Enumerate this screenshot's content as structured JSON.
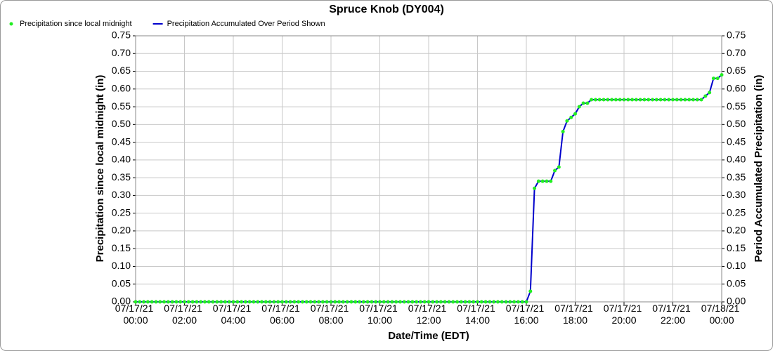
{
  "chart_data": {
    "type": "line",
    "title": "Spruce Knob (DY004)",
    "xlabel": "Date/Time (EDT)",
    "ylabel": "Precipitation since local midnight (in)",
    "y2label": "Period Accumulated Precipitation (in)",
    "x": [
      "07/17/21 00:00",
      "07/17/21 00:10",
      "07/17/21 00:20",
      "07/17/21 00:30",
      "07/17/21 00:40",
      "07/17/21 00:50",
      "07/17/21 01:00",
      "07/17/21 01:10",
      "07/17/21 01:20",
      "07/17/21 01:30",
      "07/17/21 01:40",
      "07/17/21 01:50",
      "07/17/21 02:00",
      "07/17/21 02:10",
      "07/17/21 02:20",
      "07/17/21 02:30",
      "07/17/21 02:40",
      "07/17/21 02:50",
      "07/17/21 03:00",
      "07/17/21 03:10",
      "07/17/21 03:20",
      "07/17/21 03:30",
      "07/17/21 03:40",
      "07/17/21 03:50",
      "07/17/21 04:00",
      "07/17/21 04:10",
      "07/17/21 04:20",
      "07/17/21 04:30",
      "07/17/21 04:40",
      "07/17/21 04:50",
      "07/17/21 05:00",
      "07/17/21 05:10",
      "07/17/21 05:20",
      "07/17/21 05:30",
      "07/17/21 05:40",
      "07/17/21 05:50",
      "07/17/21 06:00",
      "07/17/21 06:10",
      "07/17/21 06:20",
      "07/17/21 06:30",
      "07/17/21 06:40",
      "07/17/21 06:50",
      "07/17/21 07:00",
      "07/17/21 07:10",
      "07/17/21 07:20",
      "07/17/21 07:30",
      "07/17/21 07:40",
      "07/17/21 07:50",
      "07/17/21 08:00",
      "07/17/21 08:10",
      "07/17/21 08:20",
      "07/17/21 08:30",
      "07/17/21 08:40",
      "07/17/21 08:50",
      "07/17/21 09:00",
      "07/17/21 09:10",
      "07/17/21 09:20",
      "07/17/21 09:30",
      "07/17/21 09:40",
      "07/17/21 09:50",
      "07/17/21 10:00",
      "07/17/21 10:10",
      "07/17/21 10:20",
      "07/17/21 10:30",
      "07/17/21 10:40",
      "07/17/21 10:50",
      "07/17/21 11:00",
      "07/17/21 11:10",
      "07/17/21 11:20",
      "07/17/21 11:30",
      "07/17/21 11:40",
      "07/17/21 11:50",
      "07/17/21 12:00",
      "07/17/21 12:10",
      "07/17/21 12:20",
      "07/17/21 12:30",
      "07/17/21 12:40",
      "07/17/21 12:50",
      "07/17/21 13:00",
      "07/17/21 13:10",
      "07/17/21 13:20",
      "07/17/21 13:30",
      "07/17/21 13:40",
      "07/17/21 13:50",
      "07/17/21 14:00",
      "07/17/21 14:10",
      "07/17/21 14:20",
      "07/17/21 14:30",
      "07/17/21 14:40",
      "07/17/21 14:50",
      "07/17/21 15:00",
      "07/17/21 15:10",
      "07/17/21 15:20",
      "07/17/21 15:30",
      "07/17/21 15:40",
      "07/17/21 15:50",
      "07/17/21 16:00",
      "07/17/21 16:10",
      "07/17/21 16:20",
      "07/17/21 16:30",
      "07/17/21 16:40",
      "07/17/21 16:50",
      "07/17/21 17:00",
      "07/17/21 17:10",
      "07/17/21 17:20",
      "07/17/21 17:30",
      "07/17/21 17:40",
      "07/17/21 17:50",
      "07/17/21 18:00",
      "07/17/21 18:10",
      "07/17/21 18:20",
      "07/17/21 18:30",
      "07/17/21 18:40",
      "07/17/21 18:50",
      "07/17/21 19:00",
      "07/17/21 19:10",
      "07/17/21 19:20",
      "07/17/21 19:30",
      "07/17/21 19:40",
      "07/17/21 19:50",
      "07/17/21 20:00",
      "07/17/21 20:10",
      "07/17/21 20:20",
      "07/17/21 20:30",
      "07/17/21 20:40",
      "07/17/21 20:50",
      "07/17/21 21:00",
      "07/17/21 21:10",
      "07/17/21 21:20",
      "07/17/21 21:30",
      "07/17/21 21:40",
      "07/17/21 21:50",
      "07/17/21 22:00",
      "07/17/21 22:10",
      "07/17/21 22:20",
      "07/17/21 22:30",
      "07/17/21 22:40",
      "07/17/21 22:50",
      "07/17/21 23:00",
      "07/17/21 23:10",
      "07/17/21 23:20",
      "07/17/21 23:30",
      "07/17/21 23:40",
      "07/17/21 23:50",
      "07/18/21 00:00"
    ],
    "series": [
      {
        "name": "Precipitation since local midnight",
        "type": "scatter",
        "color": "#22ee22",
        "values": [
          0,
          0,
          0,
          0,
          0,
          0,
          0,
          0,
          0,
          0,
          0,
          0,
          0,
          0,
          0,
          0,
          0,
          0,
          0,
          0,
          0,
          0,
          0,
          0,
          0,
          0,
          0,
          0,
          0,
          0,
          0,
          0,
          0,
          0,
          0,
          0,
          0,
          0,
          0,
          0,
          0,
          0,
          0,
          0,
          0,
          0,
          0,
          0,
          0,
          0,
          0,
          0,
          0,
          0,
          0,
          0,
          0,
          0,
          0,
          0,
          0,
          0,
          0,
          0,
          0,
          0,
          0,
          0,
          0,
          0,
          0,
          0,
          0,
          0,
          0,
          0,
          0,
          0,
          0,
          0,
          0,
          0,
          0,
          0,
          0,
          0,
          0,
          0,
          0,
          0,
          0,
          0,
          0,
          0,
          0,
          0,
          0,
          0.03,
          0.32,
          0.34,
          0.34,
          0.34,
          0.34,
          0.37,
          0.38,
          0.48,
          0.51,
          0.52,
          0.53,
          0.55,
          0.56,
          0.56,
          0.57,
          0.57,
          0.57,
          0.57,
          0.57,
          0.57,
          0.57,
          0.57,
          0.57,
          0.57,
          0.57,
          0.57,
          0.57,
          0.57,
          0.57,
          0.57,
          0.57,
          0.57,
          0.57,
          0.57,
          0.57,
          0.57,
          0.57,
          0.57,
          0.57,
          0.57,
          0.57,
          0.57,
          0.58,
          0.59,
          0.63,
          0.63,
          0.64
        ]
      },
      {
        "name": "Precipitation Accumulated Over Period Shown",
        "type": "line",
        "color": "#0000cc",
        "axis": "y2",
        "values": [
          0,
          0,
          0,
          0,
          0,
          0,
          0,
          0,
          0,
          0,
          0,
          0,
          0,
          0,
          0,
          0,
          0,
          0,
          0,
          0,
          0,
          0,
          0,
          0,
          0,
          0,
          0,
          0,
          0,
          0,
          0,
          0,
          0,
          0,
          0,
          0,
          0,
          0,
          0,
          0,
          0,
          0,
          0,
          0,
          0,
          0,
          0,
          0,
          0,
          0,
          0,
          0,
          0,
          0,
          0,
          0,
          0,
          0,
          0,
          0,
          0,
          0,
          0,
          0,
          0,
          0,
          0,
          0,
          0,
          0,
          0,
          0,
          0,
          0,
          0,
          0,
          0,
          0,
          0,
          0,
          0,
          0,
          0,
          0,
          0,
          0,
          0,
          0,
          0,
          0,
          0,
          0,
          0,
          0,
          0,
          0,
          0,
          0.03,
          0.32,
          0.34,
          0.34,
          0.34,
          0.34,
          0.37,
          0.38,
          0.48,
          0.51,
          0.52,
          0.53,
          0.55,
          0.56,
          0.56,
          0.57,
          0.57,
          0.57,
          0.57,
          0.57,
          0.57,
          0.57,
          0.57,
          0.57,
          0.57,
          0.57,
          0.57,
          0.57,
          0.57,
          0.57,
          0.57,
          0.57,
          0.57,
          0.57,
          0.57,
          0.57,
          0.57,
          0.57,
          0.57,
          0.57,
          0.57,
          0.57,
          0.57,
          0.58,
          0.59,
          0.63,
          0.63,
          0.64
        ]
      }
    ],
    "xlim": [
      "07/17/21 00:00",
      "07/18/21 00:00"
    ],
    "xticks": [
      "07/17/21 00:00",
      "07/17/21 02:00",
      "07/17/21 04:00",
      "07/17/21 06:00",
      "07/17/21 08:00",
      "07/17/21 10:00",
      "07/17/21 12:00",
      "07/17/21 14:00",
      "07/17/21 16:00",
      "07/17/21 18:00",
      "07/17/21 20:00",
      "07/17/21 22:00",
      "07/18/21 00:00"
    ],
    "ylim": [
      0,
      0.75
    ],
    "yticks": [
      {
        "value": 0,
        "label": "0.00"
      },
      {
        "value": 0.05,
        "label": "0.05"
      },
      {
        "value": 0.1,
        "label": "0.10"
      },
      {
        "value": 0.15,
        "label": "0.15"
      },
      {
        "value": 0.2,
        "label": "0.20"
      },
      {
        "value": 0.25,
        "label": "0.25"
      },
      {
        "value": 0.3,
        "label": "0.30"
      },
      {
        "value": 0.35,
        "label": "0.35"
      },
      {
        "value": 0.4,
        "label": "0.40"
      },
      {
        "value": 0.45,
        "label": "0.45"
      },
      {
        "value": 0.5,
        "label": "0.50"
      },
      {
        "value": 0.55,
        "label": "0.55"
      },
      {
        "value": 0.6,
        "label": "0.60"
      },
      {
        "value": 0.65,
        "label": "0.65"
      },
      {
        "value": 0.7,
        "label": "0.70"
      },
      {
        "value": 0.75,
        "label": "0.75"
      }
    ],
    "y2lim": [
      0,
      0.75
    ],
    "y2ticks": [
      {
        "value": 0,
        "label": "0.00"
      },
      {
        "value": 0.05,
        "label": "0.05"
      },
      {
        "value": 0.1,
        "label": "0.10"
      },
      {
        "value": 0.15,
        "label": "0.15"
      },
      {
        "value": 0.2,
        "label": "0.20"
      },
      {
        "value": 0.25,
        "label": "0.25"
      },
      {
        "value": 0.3,
        "label": "0.30"
      },
      {
        "value": 0.35,
        "label": "0.35"
      },
      {
        "value": 0.4,
        "label": "0.40"
      },
      {
        "value": 0.45,
        "label": "0.45"
      },
      {
        "value": 0.5,
        "label": "0.50"
      },
      {
        "value": 0.55,
        "label": "0.55"
      },
      {
        "value": 0.6,
        "label": "0.60"
      },
      {
        "value": 0.65,
        "label": "0.65"
      },
      {
        "value": 0.7,
        "label": "0.70"
      },
      {
        "value": 0.75,
        "label": "0.75"
      }
    ],
    "grid": true,
    "legend": "top-left"
  }
}
